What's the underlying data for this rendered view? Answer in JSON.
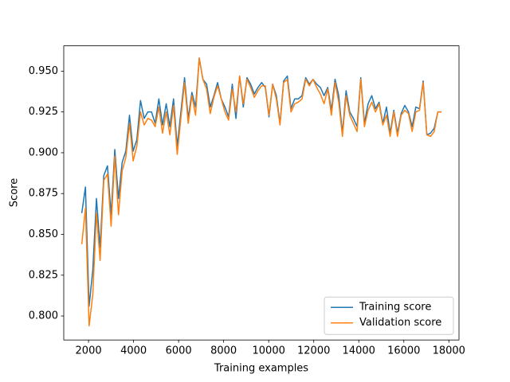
{
  "chart_data": {
    "type": "line",
    "x_label": "Training examples",
    "y_label": "Score",
    "x": [
      1700,
      1863,
      2026,
      2189,
      2352,
      2515,
      2678,
      2841,
      3004,
      3167,
      3330,
      3493,
      3656,
      3819,
      3982,
      4145,
      4308,
      4471,
      4634,
      4797,
      4960,
      5123,
      5286,
      5449,
      5612,
      5775,
      5938,
      6101,
      6264,
      6427,
      6590,
      6753,
      6916,
      7079,
      7242,
      7405,
      7568,
      7731,
      7894,
      8057,
      8220,
      8383,
      8546,
      8709,
      8872,
      9035,
      9198,
      9361,
      9524,
      9687,
      9850,
      10013,
      10176,
      10339,
      10502,
      10665,
      10828,
      10991,
      11154,
      11317,
      11480,
      11643,
      11806,
      11969,
      12132,
      12295,
      12458,
      12621,
      12784,
      12947,
      13110,
      13273,
      13436,
      13599,
      13762,
      13925,
      14088,
      14251,
      14414,
      14577,
      14740,
      14903,
      15066,
      15229,
      15392,
      15555,
      15718,
      15881,
      16044,
      16207,
      16370,
      16533,
      16696,
      16859,
      17022,
      17185,
      17348,
      17511,
      17674
    ],
    "series": [
      {
        "name": "Training score",
        "color": "#1f77b4",
        "values": [
          0.863,
          0.879,
          0.806,
          0.828,
          0.872,
          0.842,
          0.886,
          0.892,
          0.862,
          0.902,
          0.872,
          0.894,
          0.901,
          0.923,
          0.901,
          0.908,
          0.932,
          0.921,
          0.925,
          0.925,
          0.918,
          0.933,
          0.917,
          0.93,
          0.916,
          0.933,
          0.904,
          0.925,
          0.946,
          0.921,
          0.937,
          0.928,
          0.958,
          0.945,
          0.942,
          0.928,
          0.935,
          0.943,
          0.933,
          0.928,
          0.922,
          0.942,
          0.921,
          0.947,
          0.928,
          0.946,
          0.942,
          0.936,
          0.94,
          0.943,
          0.94,
          0.922,
          0.942,
          0.935,
          0.918,
          0.944,
          0.947,
          0.927,
          0.933,
          0.933,
          0.935,
          0.946,
          0.942,
          0.945,
          0.942,
          0.94,
          0.935,
          0.94,
          0.926,
          0.945,
          0.935,
          0.912,
          0.938,
          0.925,
          0.921,
          0.916,
          0.946,
          0.918,
          0.93,
          0.935,
          0.927,
          0.931,
          0.918,
          0.928,
          0.912,
          0.926,
          0.912,
          0.924,
          0.929,
          0.925,
          0.916,
          0.928,
          0.927,
          0.944,
          0.911,
          0.912,
          0.915,
          0.925,
          0.925
        ]
      },
      {
        "name": "Validation score",
        "color": "#ff7f0e",
        "values": [
          0.844,
          0.866,
          0.794,
          0.813,
          0.863,
          0.834,
          0.883,
          0.887,
          0.855,
          0.898,
          0.862,
          0.889,
          0.897,
          0.918,
          0.895,
          0.904,
          0.925,
          0.917,
          0.921,
          0.92,
          0.916,
          0.928,
          0.912,
          0.925,
          0.911,
          0.929,
          0.899,
          0.921,
          0.943,
          0.918,
          0.935,
          0.923,
          0.958,
          0.945,
          0.939,
          0.924,
          0.934,
          0.941,
          0.933,
          0.925,
          0.92,
          0.939,
          0.925,
          0.947,
          0.93,
          0.945,
          0.94,
          0.934,
          0.938,
          0.941,
          0.941,
          0.923,
          0.942,
          0.933,
          0.917,
          0.943,
          0.945,
          0.925,
          0.93,
          0.931,
          0.933,
          0.945,
          0.941,
          0.945,
          0.94,
          0.936,
          0.93,
          0.939,
          0.923,
          0.943,
          0.931,
          0.91,
          0.935,
          0.923,
          0.918,
          0.913,
          0.945,
          0.916,
          0.926,
          0.931,
          0.925,
          0.93,
          0.917,
          0.923,
          0.91,
          0.925,
          0.91,
          0.923,
          0.926,
          0.924,
          0.913,
          0.925,
          0.926,
          0.943,
          0.911,
          0.91,
          0.913,
          0.925,
          0.925
        ]
      }
    ],
    "xlim": [
      900,
      18450
    ],
    "xticks": [
      2000,
      4000,
      6000,
      8000,
      10000,
      12000,
      14000,
      16000,
      18000
    ],
    "ylim": [
      0.7853,
      0.9655
    ],
    "yticks": [
      {
        "value": 0.8,
        "label": "0.800"
      },
      {
        "value": 0.825,
        "label": "0.825"
      },
      {
        "value": 0.85,
        "label": "0.850"
      },
      {
        "value": 0.875,
        "label": "0.875"
      },
      {
        "value": 0.9,
        "label": "0.900"
      },
      {
        "value": 0.925,
        "label": "0.925"
      },
      {
        "value": 0.95,
        "label": "0.950"
      }
    ],
    "legend": "lower right"
  }
}
